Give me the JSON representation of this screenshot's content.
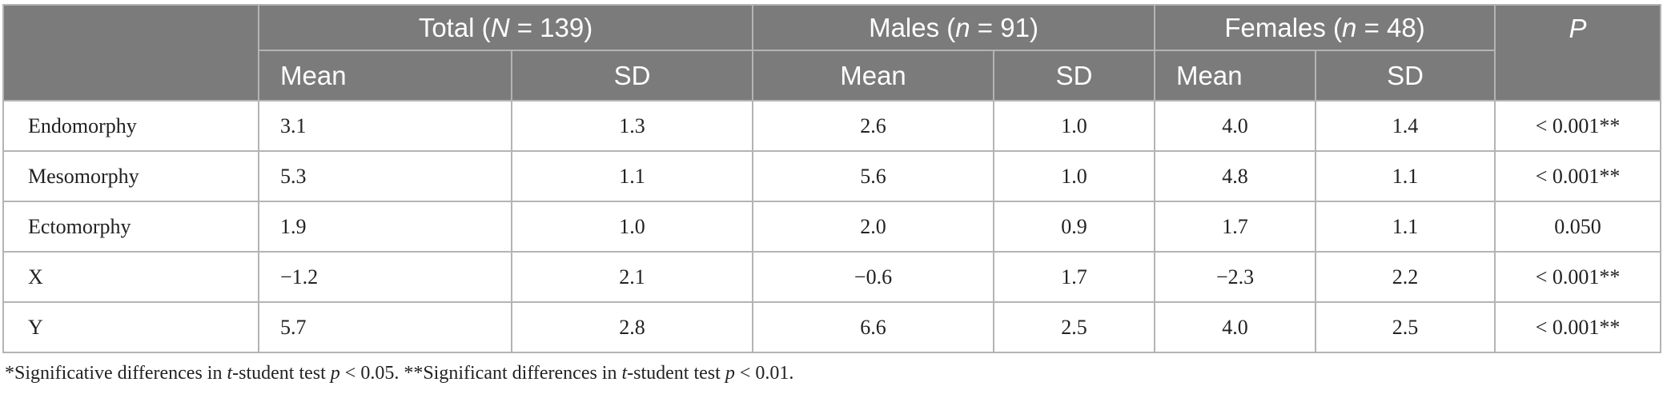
{
  "header": {
    "groups": [
      {
        "pre": "Total (",
        "var": "N",
        "post": " = 139)"
      },
      {
        "pre": "Males (",
        "var": "n",
        "post": " = 91)"
      },
      {
        "pre": "Females (",
        "var": "n",
        "post": " = 48)"
      }
    ],
    "p_label": "P",
    "sub": [
      "Mean",
      "SD",
      "Mean",
      "SD",
      "Mean",
      "SD"
    ]
  },
  "rows": [
    {
      "label": "Endomorphy",
      "cells": [
        "3.1",
        "1.3",
        "2.6",
        "1.0",
        "4.0",
        "1.4"
      ],
      "p": "< 0.001**"
    },
    {
      "label": "Mesomorphy",
      "cells": [
        "5.3",
        "1.1",
        "5.6",
        "1.0",
        "4.8",
        "1.1"
      ],
      "p": "< 0.001**"
    },
    {
      "label": "Ectomorphy",
      "cells": [
        "1.9",
        "1.0",
        "2.0",
        "0.9",
        "1.7",
        "1.1"
      ],
      "p": "0.050"
    },
    {
      "label": "X",
      "cells": [
        "−1.2",
        "2.1",
        "−0.6",
        "1.7",
        "−2.3",
        "2.2"
      ],
      "p": "< 0.001**"
    },
    {
      "label": "Y",
      "cells": [
        "5.7",
        "2.8",
        "6.6",
        "2.5",
        "4.0",
        "2.5"
      ],
      "p": "< 0.001**"
    }
  ],
  "footnote": {
    "part1": "*Significative differences in ",
    "t1": "t",
    "part2": "-student test ",
    "p1": "p",
    "part3": " < 0.05. **Significant differences in ",
    "t2": "t",
    "part4": "-student test ",
    "p2": "p",
    "part5": " < 0.01."
  }
}
